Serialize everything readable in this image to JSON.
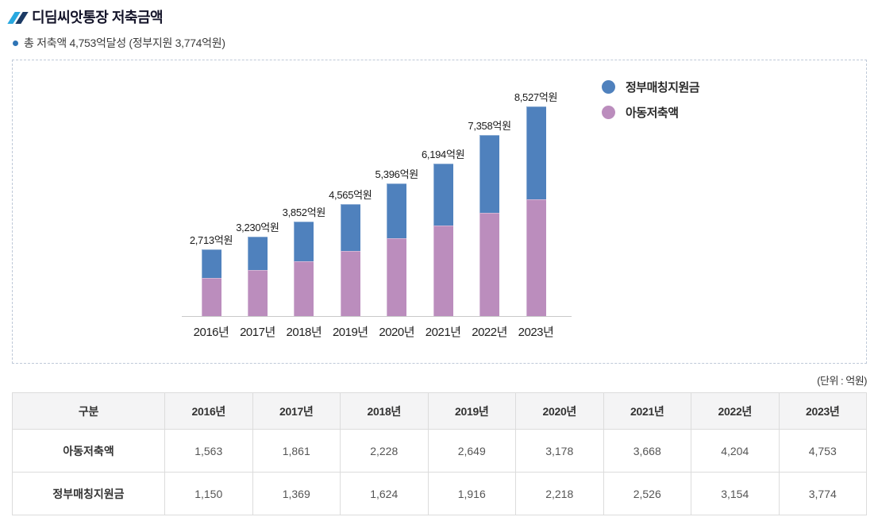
{
  "header": {
    "title": "디딤씨앗통장 저축금액",
    "subtitle": "총 저축액 4,753억달성 (정부지원 3,774억원)"
  },
  "chart_data": {
    "type": "bar",
    "stacked": true,
    "title": "",
    "xlabel": "",
    "ylabel": "",
    "unit": "억원",
    "grid": false,
    "ylim": [
      0,
      8527
    ],
    "legend_position": "top-right",
    "categories": [
      "2016년",
      "2017년",
      "2018년",
      "2019년",
      "2020년",
      "2021년",
      "2022년",
      "2023년"
    ],
    "series": [
      {
        "name": "아동저축액",
        "stack": "bottom",
        "color": "#bb8dbd",
        "values": [
          1563,
          1861,
          2228,
          2649,
          3178,
          3668,
          4204,
          4753
        ]
      },
      {
        "name": "정부매칭지원금",
        "stack": "top",
        "color": "#4f81bd",
        "values": [
          1150,
          1369,
          1624,
          1916,
          2218,
          2526,
          3154,
          3774
        ]
      }
    ],
    "totals": [
      2713,
      3230,
      3852,
      4565,
      5396,
      6194,
      7358,
      8527
    ],
    "total_labels": [
      "2,713억원",
      "3,230억원",
      "3,852억원",
      "4,565억원",
      "5,396억원",
      "6,194억원",
      "7,358억원",
      "8,527억원"
    ],
    "legend": [
      {
        "label": "정부매칭지원금",
        "color": "#4f81bd"
      },
      {
        "label": "아동저축액",
        "color": "#bb8dbd"
      }
    ]
  },
  "unit_label": "(단위 : 억원)",
  "table": {
    "columns": [
      "구분",
      "2016년",
      "2017년",
      "2018년",
      "2019년",
      "2020년",
      "2021년",
      "2022년",
      "2023년"
    ],
    "rows": [
      {
        "label": "아동저축액",
        "values": [
          "1,563",
          "1,861",
          "2,228",
          "2,649",
          "3,178",
          "3,668",
          "4,204",
          "4,753"
        ]
      },
      {
        "label": "정부매칭지원금",
        "values": [
          "1,150",
          "1,369",
          "1,624",
          "1,916",
          "2,218",
          "2,526",
          "3,154",
          "3,774"
        ]
      }
    ]
  },
  "colors": {
    "government_blue": "#4f81bd",
    "child_purple": "#bb8dbd",
    "title_slash_light": "#29a8df",
    "title_slash_dark": "#1b3a64",
    "bullet_blue": "#2e74b5",
    "axis_line": "#c9c9c9",
    "panel_border": "#bfc9d8",
    "table_border": "#dcdcdc",
    "table_header_bg": "#f4f4f5"
  }
}
